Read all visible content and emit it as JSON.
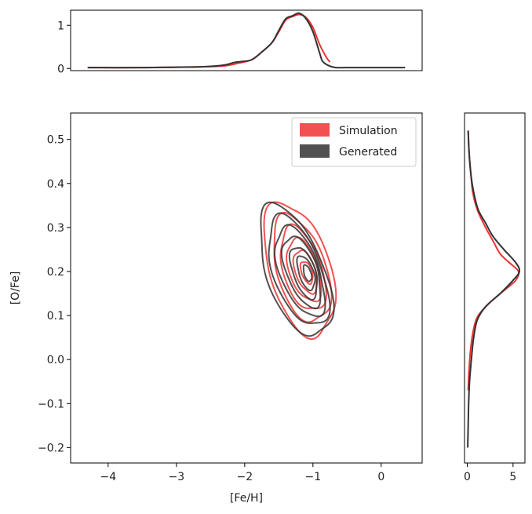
{
  "chart_data": {
    "type": "kde-joint",
    "xlabel": "[Fe/H]",
    "ylabel": "[O/Fe]",
    "xlim": [
      -4.55,
      0.6
    ],
    "ylim": [
      -0.235,
      0.56
    ],
    "x_ticks": [
      "−4",
      "−3",
      "−2",
      "−1",
      "0"
    ],
    "x_tick_values": [
      -4,
      -3,
      -2,
      -1,
      0
    ],
    "y_ticks": [
      "−0.2",
      "−0.1",
      "0.0",
      "0.1",
      "0.2",
      "0.3",
      "0.4",
      "0.5"
    ],
    "y_tick_values": [
      -0.2,
      -0.1,
      0.0,
      0.1,
      0.2,
      0.3,
      0.4,
      0.5
    ],
    "legend": {
      "placement": "top-right",
      "items": [
        {
          "label": "Simulation",
          "color": "#ee3333"
        },
        {
          "label": "Generated",
          "color": "#333333"
        }
      ]
    },
    "series": [
      {
        "name": "Simulation",
        "color": "#ee3333",
        "contours": [
          {
            "cx": -1.2,
            "cy": 0.205,
            "rx": 0.52,
            "ry": 0.135,
            "tilt": -0.06
          },
          {
            "cx": -1.17,
            "cy": 0.205,
            "rx": 0.42,
            "ry": 0.108,
            "tilt": -0.06
          },
          {
            "cx": -1.15,
            "cy": 0.205,
            "rx": 0.33,
            "ry": 0.085,
            "tilt": -0.06
          },
          {
            "cx": -1.13,
            "cy": 0.203,
            "rx": 0.25,
            "ry": 0.063,
            "tilt": -0.06
          },
          {
            "cx": -1.11,
            "cy": 0.2,
            "rx": 0.17,
            "ry": 0.043,
            "tilt": -0.06
          },
          {
            "cx": -1.09,
            "cy": 0.198,
            "rx": 0.09,
            "ry": 0.022,
            "tilt": -0.06
          }
        ],
        "marginal_x": {
          "x": [
            -4.3,
            -3.5,
            -3.0,
            -2.6,
            -2.3,
            -2.1,
            -1.9,
            -1.75,
            -1.6,
            -1.5,
            -1.4,
            -1.3,
            -1.2,
            -1.1,
            -1.0,
            -0.9,
            -0.8,
            -0.75
          ],
          "y": [
            0.02,
            0.02,
            0.03,
            0.04,
            0.06,
            0.12,
            0.2,
            0.38,
            0.6,
            0.85,
            1.12,
            1.2,
            1.25,
            1.18,
            0.95,
            0.55,
            0.25,
            0.15
          ]
        },
        "marginal_y": {
          "y": [
            -0.07,
            -0.02,
            0.03,
            0.07,
            0.1,
            0.13,
            0.16,
            0.18,
            0.2,
            0.22,
            0.24,
            0.27,
            0.3,
            0.34,
            0.38,
            0.42,
            0.47,
            0.52
          ],
          "x": [
            0.1,
            0.2,
            0.4,
            0.7,
            1.2,
            2.5,
            4.2,
            5.3,
            5.6,
            4.6,
            3.6,
            2.8,
            2.0,
            1.1,
            0.6,
            0.4,
            0.2,
            0.1
          ]
        }
      },
      {
        "name": "Generated",
        "color": "#333333",
        "contours": [
          {
            "cx": -1.26,
            "cy": 0.2,
            "rx": 0.53,
            "ry": 0.125,
            "tilt": -0.07
          },
          {
            "cx": -1.22,
            "cy": 0.2,
            "rx": 0.44,
            "ry": 0.105,
            "tilt": -0.07
          },
          {
            "cx": -1.19,
            "cy": 0.2,
            "rx": 0.36,
            "ry": 0.086,
            "tilt": -0.07
          },
          {
            "cx": -1.16,
            "cy": 0.2,
            "rx": 0.28,
            "ry": 0.068,
            "tilt": -0.07
          },
          {
            "cx": -1.13,
            "cy": 0.198,
            "rx": 0.2,
            "ry": 0.05,
            "tilt": -0.07
          },
          {
            "cx": -1.1,
            "cy": 0.197,
            "rx": 0.13,
            "ry": 0.033,
            "tilt": -0.07
          },
          {
            "cx": -1.08,
            "cy": 0.196,
            "rx": 0.06,
            "ry": 0.016,
            "tilt": -0.07
          }
        ],
        "marginal_x": {
          "x": [
            -4.3,
            -3.5,
            -3.0,
            -2.6,
            -2.3,
            -2.15,
            -2.05,
            -1.9,
            -1.75,
            -1.6,
            -1.5,
            -1.4,
            -1.3,
            -1.2,
            -1.1,
            -1.0,
            -0.9,
            -0.85,
            -0.7,
            -0.5,
            0.0,
            0.35
          ],
          "y": [
            0.02,
            0.02,
            0.03,
            0.04,
            0.08,
            0.14,
            0.16,
            0.2,
            0.38,
            0.6,
            0.88,
            1.15,
            1.22,
            1.28,
            1.15,
            0.85,
            0.35,
            0.15,
            0.03,
            0.02,
            0.02,
            0.02
          ]
        },
        "marginal_y": {
          "y": [
            -0.2,
            -0.15,
            -0.1,
            -0.05,
            0.0,
            0.05,
            0.09,
            0.12,
            0.15,
            0.18,
            0.2,
            0.22,
            0.25,
            0.28,
            0.31,
            0.34,
            0.38,
            0.42,
            0.47,
            0.52
          ],
          "x": [
            0.05,
            0.1,
            0.15,
            0.25,
            0.45,
            0.7,
            1.1,
            2.0,
            3.6,
            5.0,
            5.7,
            5.3,
            4.0,
            2.8,
            2.0,
            1.2,
            0.7,
            0.4,
            0.2,
            0.1
          ]
        }
      }
    ],
    "top_panel": {
      "ylim": [
        -0.05,
        1.35
      ],
      "y_ticks": [
        "0",
        "1"
      ],
      "y_tick_values": [
        0,
        1
      ]
    },
    "right_panel": {
      "xlim": [
        -0.3,
        6.3
      ],
      "x_ticks": [
        "0",
        "5"
      ],
      "x_tick_values": [
        0,
        5
      ]
    }
  }
}
